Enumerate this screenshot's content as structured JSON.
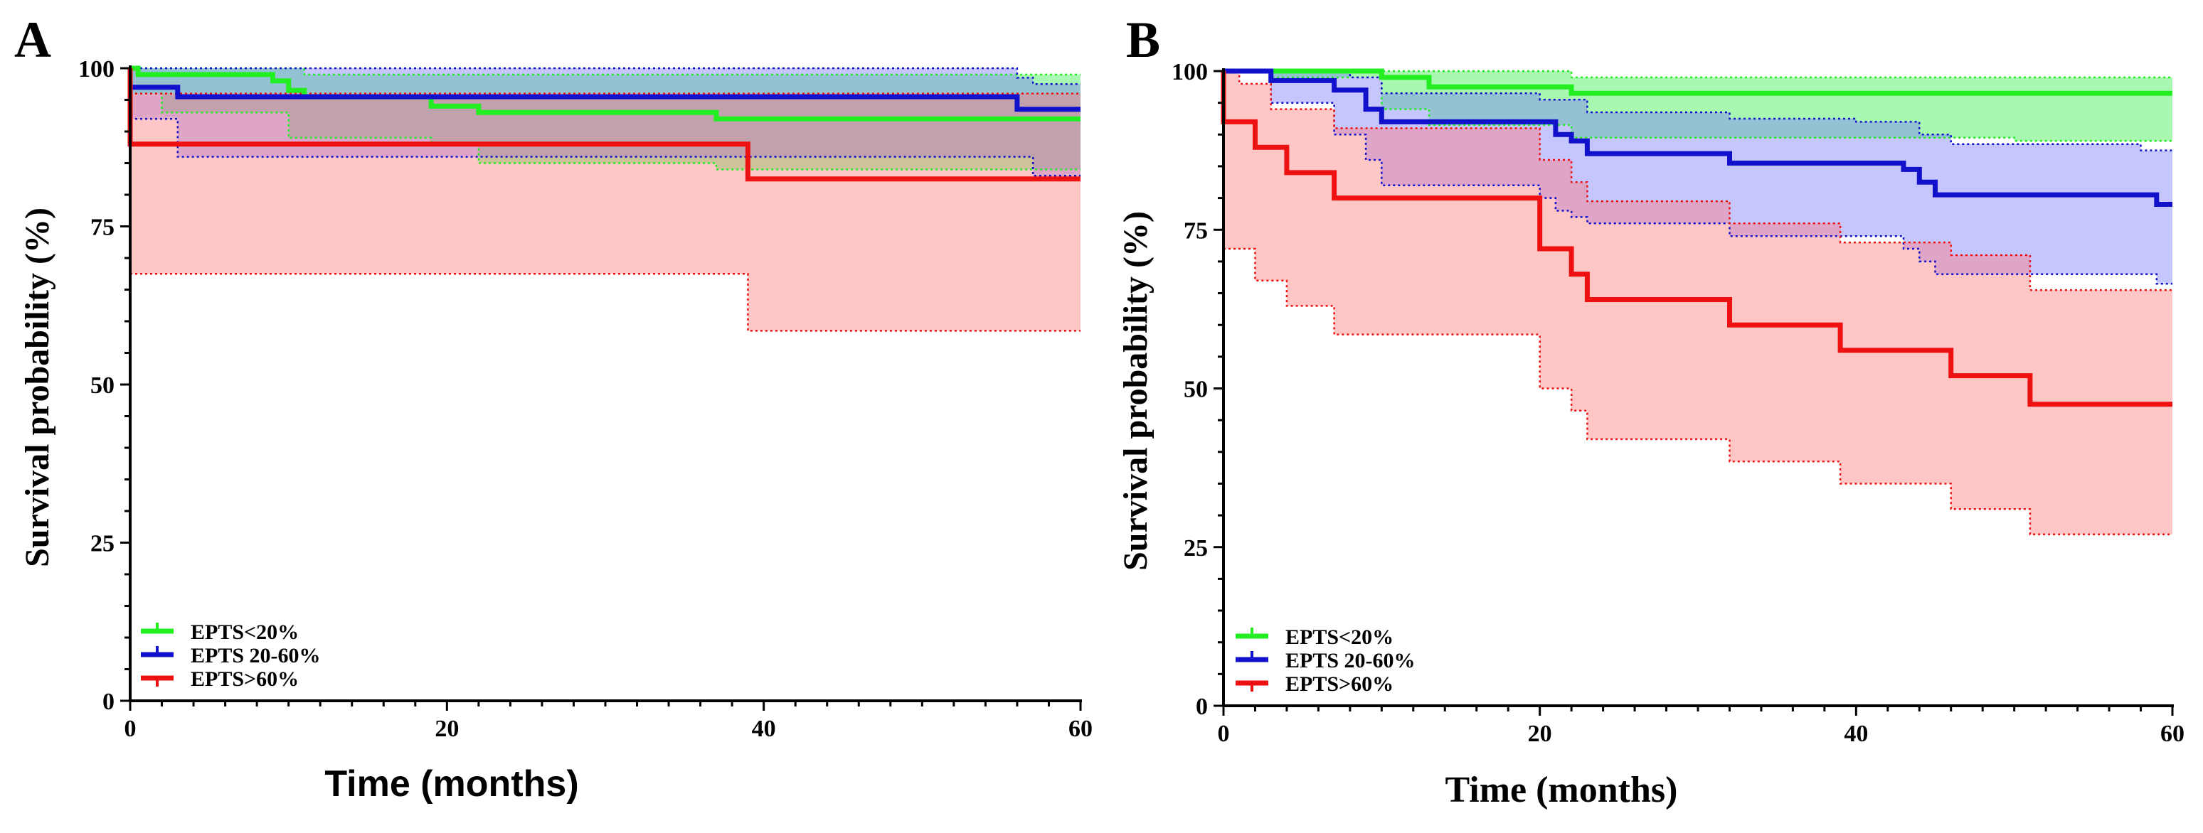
{
  "colors": {
    "green": "#22ee22",
    "blue": "#1111cc",
    "red": "#ee1111",
    "green_fill": "#33ee44",
    "blue_fill": "#7777ff",
    "red_fill": "#ff7777"
  },
  "chart_data": [
    {
      "type": "line",
      "panel": "A",
      "xlabel": "Time (months)",
      "ylabel": "Survival probability (%)",
      "xlim": [
        0,
        60
      ],
      "ylim": [
        0,
        100
      ],
      "xticks": [
        0,
        20,
        40,
        60
      ],
      "yticks": [
        0,
        25,
        50,
        75,
        100
      ],
      "legend_position": "bottom-left",
      "series": [
        {
          "name": "EPTS<20%",
          "color_key": "green",
          "steps": [
            [
              0,
              100
            ],
            [
              0.5,
              99
            ],
            [
              9,
              98
            ],
            [
              10,
              96.5
            ],
            [
              11,
              95.5
            ],
            [
              19,
              94
            ],
            [
              22,
              93
            ],
            [
              37,
              92
            ],
            [
              60,
              92
            ]
          ],
          "ci_upper": [
            [
              0,
              100
            ],
            [
              0.5,
              100
            ],
            [
              11,
              99
            ],
            [
              60,
              99
            ]
          ],
          "ci_lower": [
            [
              0,
              96
            ],
            [
              2,
              93
            ],
            [
              10,
              89
            ],
            [
              19,
              88
            ],
            [
              22,
              85
            ],
            [
              37,
              84
            ],
            [
              60,
              84
            ]
          ]
        },
        {
          "name": "EPTS 20-60%",
          "color_key": "blue",
          "steps": [
            [
              0,
              97
            ],
            [
              3,
              95.5
            ],
            [
              56,
              95.5
            ],
            [
              56,
              93.5
            ],
            [
              60,
              93.5
            ]
          ],
          "ci_upper": [
            [
              0,
              100
            ],
            [
              56,
              98.5
            ],
            [
              57,
              97.5
            ],
            [
              60,
              97.5
            ]
          ],
          "ci_lower": [
            [
              0,
              92
            ],
            [
              3,
              86
            ],
            [
              56,
              86
            ],
            [
              57,
              83
            ],
            [
              60,
              83
            ]
          ]
        },
        {
          "name": "EPTS>60%",
          "color_key": "red",
          "steps": [
            [
              0,
              100
            ],
            [
              0,
              88
            ],
            [
              39,
              88
            ],
            [
              39,
              82.5
            ],
            [
              60,
              82.5
            ]
          ],
          "ci_upper": [
            [
              0,
              96
            ],
            [
              39,
              96
            ],
            [
              60,
              96
            ]
          ],
          "ci_lower": [
            [
              0,
              67.5
            ],
            [
              39,
              67.5
            ],
            [
              39,
              58.5
            ],
            [
              60,
              58.5
            ]
          ]
        }
      ]
    },
    {
      "type": "line",
      "panel": "B",
      "xlabel": "Time (months)",
      "ylabel": "Survival probability (%)",
      "xlim": [
        0,
        60
      ],
      "ylim": [
        0,
        100
      ],
      "xticks": [
        0,
        20,
        40,
        60
      ],
      "yticks": [
        0,
        25,
        50,
        75,
        100
      ],
      "legend_position": "bottom-left",
      "series": [
        {
          "name": "EPTS<20%",
          "color_key": "green",
          "steps": [
            [
              0,
              100
            ],
            [
              10,
              99
            ],
            [
              13,
              97.5
            ],
            [
              22,
              96.5
            ],
            [
              60,
              96.5
            ]
          ],
          "ci_upper": [
            [
              0,
              100
            ],
            [
              22,
              99
            ],
            [
              60,
              99
            ]
          ],
          "ci_lower": [
            [
              0,
              100
            ],
            [
              3,
              99
            ],
            [
              10,
              94
            ],
            [
              13,
              91.5
            ],
            [
              22,
              89.5
            ],
            [
              43,
              89.5
            ],
            [
              50,
              89
            ],
            [
              60,
              89
            ]
          ]
        },
        {
          "name": "EPTS 20-60%",
          "color_key": "blue",
          "steps": [
            [
              0,
              100
            ],
            [
              3,
              98.5
            ],
            [
              7,
              97
            ],
            [
              9,
              94
            ],
            [
              10,
              92
            ],
            [
              20,
              92
            ],
            [
              21,
              90
            ],
            [
              22,
              89
            ],
            [
              23,
              87
            ],
            [
              32,
              85.5
            ],
            [
              43,
              84.5
            ],
            [
              44,
              82.5
            ],
            [
              45,
              80.5
            ],
            [
              59,
              79
            ],
            [
              60,
              79
            ]
          ],
          "ci_upper": [
            [
              0,
              100
            ],
            [
              3,
              100
            ],
            [
              8,
              99
            ],
            [
              10,
              96.5
            ],
            [
              20,
              95.5
            ],
            [
              23,
              93.5
            ],
            [
              32,
              92.5
            ],
            [
              40,
              92
            ],
            [
              44,
              90
            ],
            [
              46,
              88.5
            ],
            [
              58,
              87.5
            ],
            [
              60,
              87.5
            ]
          ],
          "ci_lower": [
            [
              0,
              100
            ],
            [
              3,
              95
            ],
            [
              7,
              90
            ],
            [
              9,
              86
            ],
            [
              10,
              82
            ],
            [
              20,
              80
            ],
            [
              21,
              78
            ],
            [
              22,
              77
            ],
            [
              23,
              76
            ],
            [
              32,
              74
            ],
            [
              43,
              72
            ],
            [
              44,
              70
            ],
            [
              45,
              68
            ],
            [
              58,
              68
            ],
            [
              59,
              66.5
            ],
            [
              60,
              66.5
            ]
          ]
        },
        {
          "name": "EPTS>60%",
          "color_key": "red",
          "steps": [
            [
              0,
              100
            ],
            [
              0,
              92
            ],
            [
              2,
              88
            ],
            [
              4,
              84
            ],
            [
              7,
              80
            ],
            [
              20,
              80
            ],
            [
              20,
              72
            ],
            [
              22,
              68
            ],
            [
              23,
              64
            ],
            [
              32,
              60
            ],
            [
              39,
              56
            ],
            [
              46,
              52
            ],
            [
              51,
              47.5
            ],
            [
              60,
              47.5
            ]
          ],
          "ci_upper": [
            [
              0,
              100
            ],
            [
              1,
              98
            ],
            [
              3,
              94
            ],
            [
              7,
              91
            ],
            [
              20,
              91
            ],
            [
              20,
              86
            ],
            [
              22,
              82.5
            ],
            [
              23,
              79.5
            ],
            [
              32,
              76
            ],
            [
              39,
              73
            ],
            [
              46,
              71
            ],
            [
              51,
              65.5
            ],
            [
              60,
              65.5
            ]
          ],
          "ci_lower": [
            [
              0,
              72
            ],
            [
              2,
              67
            ],
            [
              4,
              63
            ],
            [
              7,
              58.5
            ],
            [
              20,
              58.5
            ],
            [
              20,
              50
            ],
            [
              22,
              46.5
            ],
            [
              23,
              42
            ],
            [
              32,
              38.5
            ],
            [
              39,
              35
            ],
            [
              46,
              31
            ],
            [
              51,
              27
            ],
            [
              60,
              27
            ]
          ]
        }
      ]
    }
  ]
}
